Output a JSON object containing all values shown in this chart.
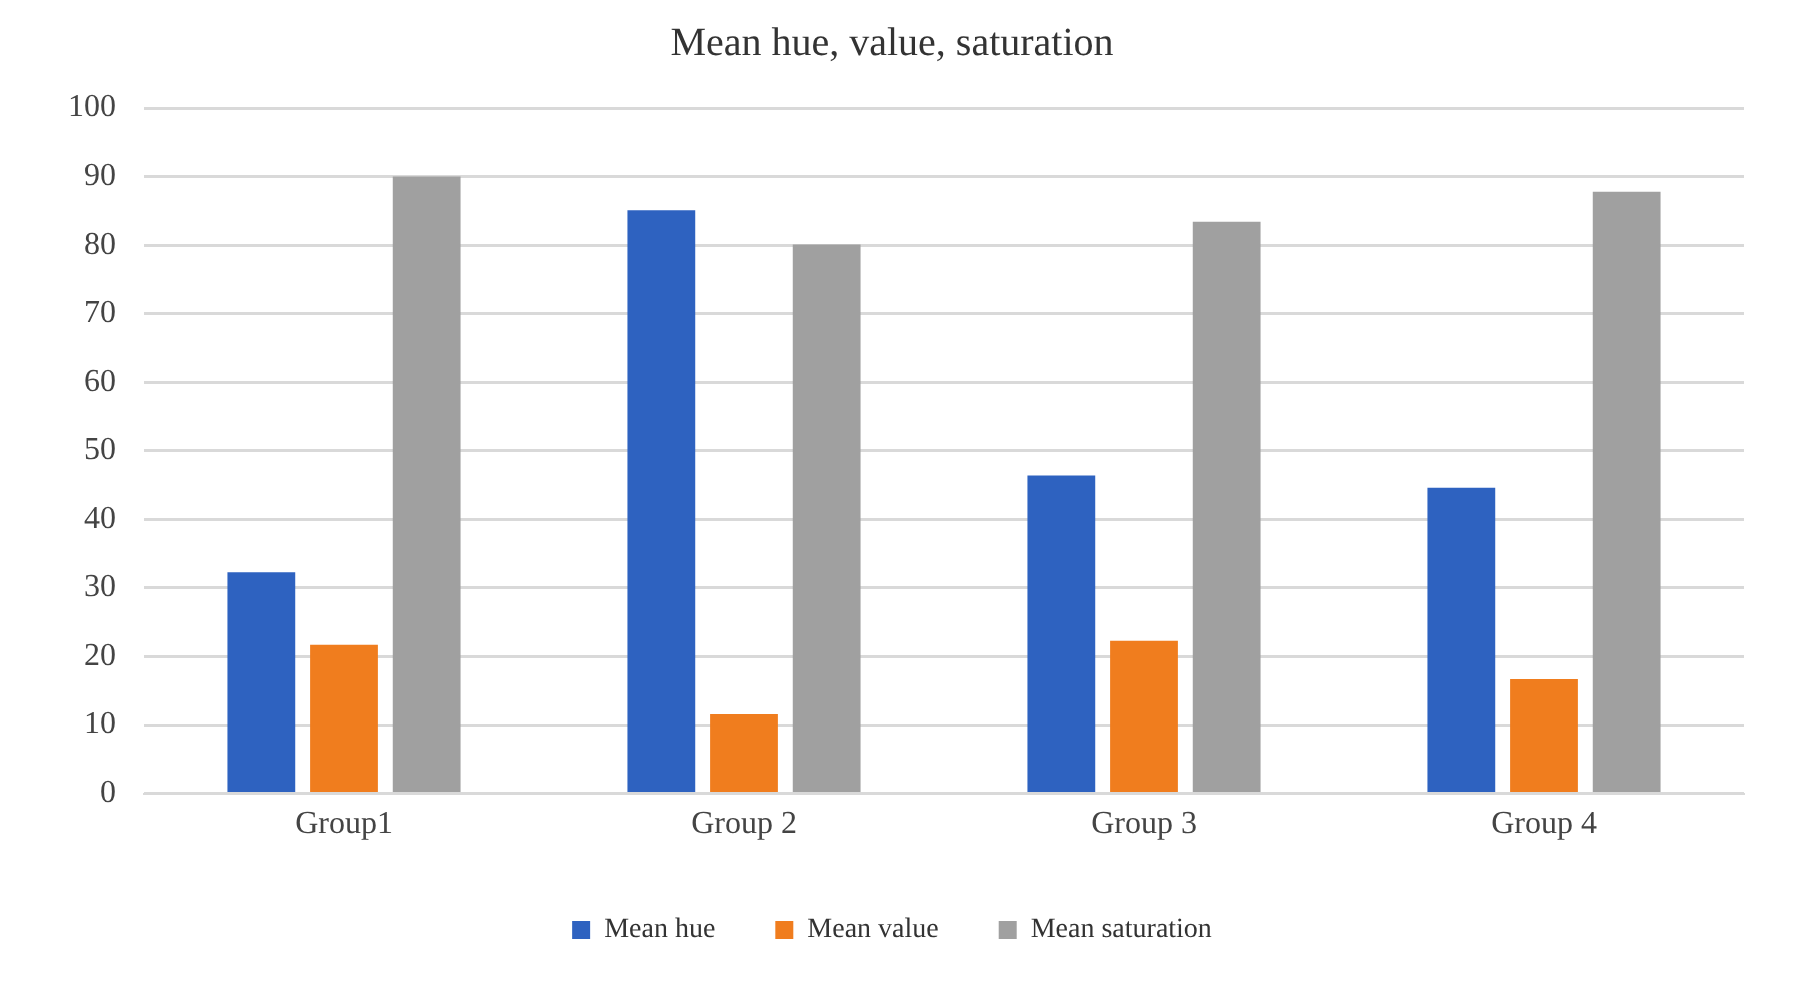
{
  "chart_data": {
    "type": "bar",
    "title": "Mean hue, value, saturation",
    "categories": [
      "Group1",
      "Group 2",
      "Group 3",
      "Group 4"
    ],
    "series": [
      {
        "name": "Mean hue",
        "color": "#2e62c0",
        "values": [
          32.3,
          85.1,
          46.4,
          44.6
        ]
      },
      {
        "name": "Mean value",
        "color": "#f07d1e",
        "values": [
          21.7,
          11.6,
          22.3,
          16.7
        ]
      },
      {
        "name": "Mean saturation",
        "color": "#a0a0a0",
        "values": [
          90.0,
          80.1,
          83.4,
          87.8
        ]
      }
    ],
    "ylim": [
      0,
      100
    ],
    "yticks": [
      0,
      10,
      20,
      30,
      40,
      50,
      60,
      70,
      80,
      90,
      100
    ],
    "grid": "y",
    "legend": "bottom"
  }
}
